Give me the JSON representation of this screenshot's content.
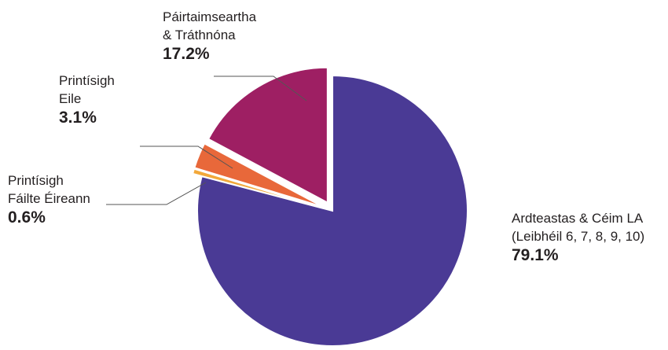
{
  "chart_data": {
    "type": "pie",
    "title": "",
    "slices": [
      {
        "label_lines": [
          "Ardteastas & Céim LA",
          "(Leibhéil 6, 7, 8, 9, 10)"
        ],
        "value": 79.1,
        "value_label": "79.1%",
        "color": "#4a3a95",
        "exploded": false
      },
      {
        "label_lines": [
          "Printísigh",
          "Fáilte Éireann"
        ],
        "value": 0.6,
        "value_label": "0.6%",
        "color": "#f2a83a",
        "exploded": true
      },
      {
        "label_lines": [
          "Printísigh",
          "Eile"
        ],
        "value": 3.1,
        "value_label": "3.1%",
        "color": "#e8683a",
        "exploded": true
      },
      {
        "label_lines": [
          "Páirtaimseartha",
          "& Tráthnóna"
        ],
        "value": 17.2,
        "value_label": "17.2%",
        "color": "#9e1f63",
        "exploded": true
      }
    ],
    "legend": "none",
    "leader_line_color": "#555555"
  }
}
